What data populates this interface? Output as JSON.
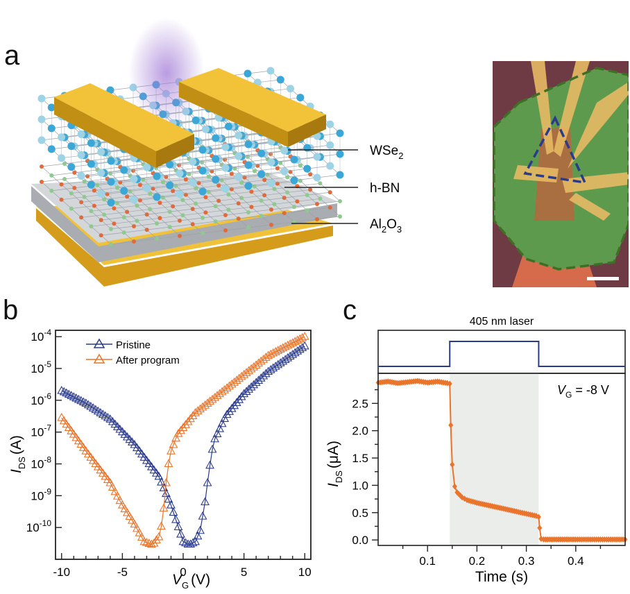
{
  "panels": {
    "a": "a",
    "b": "b",
    "c": "c"
  },
  "device": {
    "labels": {
      "wse2": {
        "base": "WSe",
        "sub": "2"
      },
      "hbn": "h-BN",
      "al2o3": {
        "a": "Al",
        "s1": "2",
        "b": "O",
        "s2": "3"
      }
    },
    "colors": {
      "gold": "#e0b230",
      "substrate": "#c9cccf",
      "optical_bg": "#6e3b45",
      "flake": "#5e9a4e"
    }
  },
  "chart_data": [
    {
      "id": "b",
      "type": "scatter",
      "xscale": "linear",
      "yscale": "log",
      "xlim": [
        -10.5,
        10.5
      ],
      "ylim_exp": [
        -11,
        -3.8
      ],
      "xticks": [
        -10,
        -5,
        0,
        5,
        10
      ],
      "yticks": [
        {
          "exp": -4,
          "base": "10",
          "sup": "-4"
        },
        {
          "exp": -5,
          "base": "10",
          "sup": "-5"
        },
        {
          "exp": -6,
          "base": "10",
          "sup": "-6"
        },
        {
          "exp": -7,
          "base": "10",
          "sup": "-7"
        },
        {
          "exp": -8,
          "base": "10",
          "sup": "-8"
        },
        {
          "exp": -9,
          "base": "10",
          "sup": "-9"
        },
        {
          "exp": -10,
          "base": "10",
          "sup": "-10"
        }
      ],
      "xlabel": {
        "main": "V",
        "sub": "G",
        "unit": "(V)"
      },
      "ylabel": {
        "main": "I",
        "sub": "DS",
        "unit": "(A)"
      },
      "legend": {
        "position": "top-left",
        "entries": [
          "Pristine",
          "After program"
        ]
      },
      "series": [
        {
          "name": "Pristine",
          "color": "#2b3b8c",
          "anchors": [
            [
              -10,
              -5.7
            ],
            [
              -8,
              -6.1
            ],
            [
              -6,
              -6.6
            ],
            [
              -4,
              -7.4
            ],
            [
              -2,
              -8.4
            ],
            [
              -1,
              -9.3
            ],
            [
              -0.3,
              -10.1
            ],
            [
              0,
              -10.45
            ],
            [
              0.5,
              -10.55
            ],
            [
              1.0,
              -10.45
            ],
            [
              1.4,
              -10.1
            ],
            [
              1.8,
              -9.2
            ],
            [
              2.1,
              -8.3
            ],
            [
              2.5,
              -7.3
            ],
            [
              3.5,
              -6.5
            ],
            [
              5,
              -5.8
            ],
            [
              7,
              -5.1
            ],
            [
              10,
              -4.3
            ]
          ]
        },
        {
          "name": "After program",
          "color": "#e9742b",
          "anchors": [
            [
              -10,
              -6.55
            ],
            [
              -8,
              -7.6
            ],
            [
              -6,
              -8.6
            ],
            [
              -5,
              -9.3
            ],
            [
              -4,
              -9.9
            ],
            [
              -3.2,
              -10.45
            ],
            [
              -2.5,
              -10.55
            ],
            [
              -2.0,
              -10.3
            ],
            [
              -1.7,
              -9.8
            ],
            [
              -1.5,
              -9.0
            ],
            [
              -1.3,
              -8.2
            ],
            [
              -1.0,
              -7.6
            ],
            [
              -0.5,
              -7.1
            ],
            [
              1,
              -6.4
            ],
            [
              3,
              -5.8
            ],
            [
              5,
              -5.2
            ],
            [
              7,
              -4.6
            ],
            [
              10,
              -4.0
            ]
          ]
        }
      ]
    },
    {
      "id": "c",
      "type": "line",
      "title": "405 nm laser",
      "annotation": {
        "main": "V",
        "sub": "G",
        "rest": " = -8 V"
      },
      "xlim": [
        0,
        0.5
      ],
      "ylim": [
        -0.1,
        3.05
      ],
      "xticks": [
        0.1,
        0.2,
        0.3,
        0.4
      ],
      "yticks": [
        0.0,
        0.5,
        1.0,
        1.5,
        2.0,
        2.5
      ],
      "xlabel": "Time (s)",
      "ylabel": {
        "main": "I",
        "sub": "DS",
        "unit": "(μA)"
      },
      "laser": {
        "on": 0.145,
        "off": 0.325
      },
      "series": [
        {
          "name": "IDS",
          "color": "#e9742b",
          "x": [
            0.0,
            0.02,
            0.04,
            0.06,
            0.08,
            0.1,
            0.12,
            0.14,
            0.145,
            0.147,
            0.15,
            0.155,
            0.16,
            0.17,
            0.18,
            0.2,
            0.22,
            0.25,
            0.28,
            0.3,
            0.32,
            0.325,
            0.327,
            0.33,
            0.335,
            0.35,
            0.4,
            0.45,
            0.5
          ],
          "y": [
            2.88,
            2.9,
            2.87,
            2.89,
            2.91,
            2.88,
            2.9,
            2.87,
            2.86,
            2.1,
            1.38,
            0.98,
            0.87,
            0.78,
            0.73,
            0.68,
            0.64,
            0.58,
            0.52,
            0.48,
            0.44,
            0.42,
            0.22,
            0.02,
            0.01,
            0.01,
            0.01,
            0.01,
            0.01
          ]
        }
      ]
    }
  ]
}
